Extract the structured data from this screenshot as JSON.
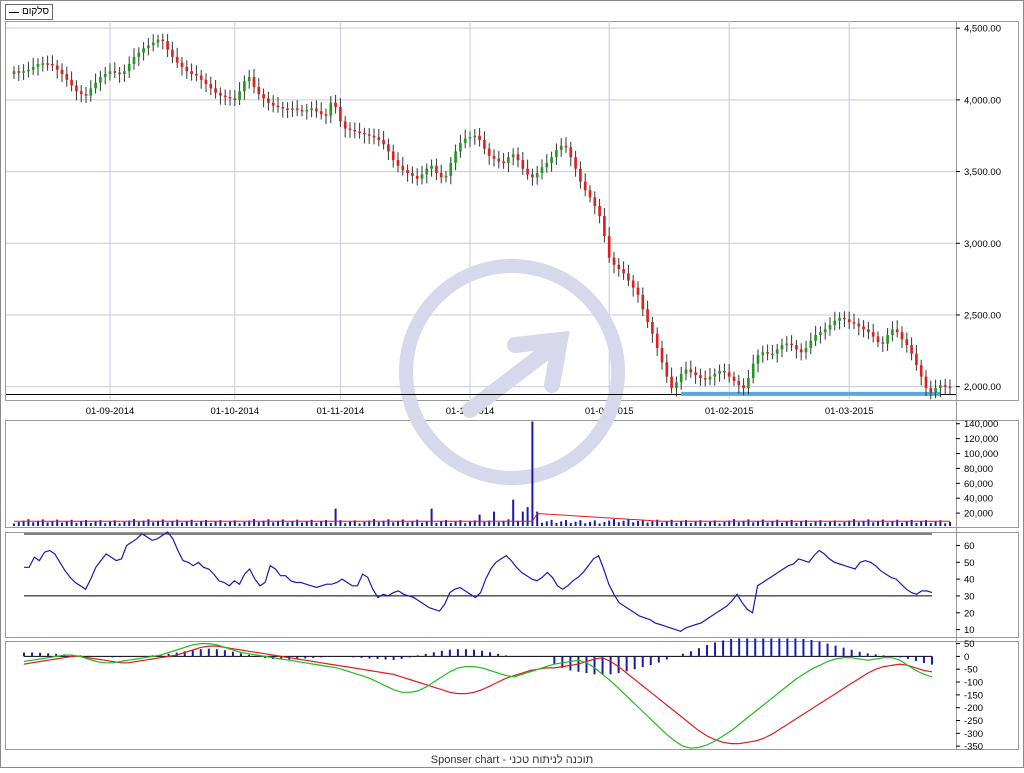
{
  "legend": {
    "label": "סלקום"
  },
  "footer": {
    "text": "Sponser chart - תוכנה לניתוח טכני"
  },
  "colors": {
    "up": "#1e9a1e",
    "down": "#e01e1e",
    "volume": "#1a1ab3",
    "volume_ma": "#e01e1e",
    "oscillator": "#1a1ab3",
    "macd": "#e01e1e",
    "signal": "#22bb22",
    "histogram": "#1a1ab3",
    "support": "#55aadd",
    "grid": "#c9c9df",
    "watermark": "#d8d8ec"
  },
  "chart_data": [
    {
      "type": "candlestick",
      "panel": "price",
      "ylim": [
        1900,
        4550
      ],
      "yticks": [
        "2,000.00",
        "2,500.00",
        "3,000.00",
        "3,500.00",
        "4,000.00",
        "4,500.00"
      ],
      "ytick_values": [
        2000,
        2500,
        3000,
        3500,
        4000,
        4500
      ],
      "xtick_labels": [
        "01-09-2014",
        "01-10-2014",
        "01-11-2014",
        "01-12-2014",
        "01-01-2015",
        "01-02-2015",
        "01-03-2015"
      ],
      "xtick_index": [
        20,
        46,
        68,
        95,
        124,
        149,
        174
      ],
      "support_level": 1950,
      "support_range_index": [
        139,
        193
      ],
      "reference_level": 1945,
      "close_series": [
        4200,
        4190,
        4200,
        4210,
        4230,
        4250,
        4255,
        4250,
        4240,
        4210,
        4180,
        4140,
        4100,
        4060,
        4040,
        4030,
        4080,
        4120,
        4160,
        4180,
        4200,
        4190,
        4180,
        4200,
        4250,
        4300,
        4330,
        4360,
        4380,
        4400,
        4420,
        4410,
        4350,
        4300,
        4260,
        4230,
        4200,
        4180,
        4170,
        4140,
        4110,
        4080,
        4050,
        4030,
        4020,
        4010,
        4000,
        4060,
        4130,
        4160,
        4090,
        4040,
        4010,
        3980,
        3960,
        3950,
        3940,
        3930,
        3940,
        3930,
        3920,
        3930,
        3940,
        3920,
        3900,
        3890,
        3980,
        3950,
        3850,
        3800,
        3790,
        3780,
        3770,
        3760,
        3750,
        3740,
        3720,
        3690,
        3640,
        3580,
        3540,
        3510,
        3490,
        3470,
        3450,
        3480,
        3520,
        3540,
        3490,
        3460,
        3470,
        3560,
        3640,
        3700,
        3730,
        3740,
        3750,
        3720,
        3660,
        3610,
        3590,
        3570,
        3560,
        3600,
        3620,
        3580,
        3520,
        3480,
        3460,
        3490,
        3530,
        3560,
        3600,
        3650,
        3680,
        3670,
        3600,
        3520,
        3430,
        3370,
        3320,
        3260,
        3190,
        3050,
        2900,
        2850,
        2820,
        2790,
        2740,
        2690,
        2640,
        2540,
        2450,
        2370,
        2270,
        2170,
        2070,
        1990,
        2030,
        2090,
        2120,
        2100,
        2080,
        2060,
        2050,
        2070,
        2090,
        2110,
        2100,
        2070,
        2040,
        2010,
        1990,
        2060,
        2160,
        2220,
        2240,
        2230,
        2230,
        2260,
        2290,
        2300,
        2290,
        2260,
        2240,
        2270,
        2320,
        2360,
        2380,
        2400,
        2430,
        2460,
        2480,
        2470,
        2450,
        2440,
        2420,
        2400,
        2380,
        2350,
        2310,
        2300,
        2360,
        2400,
        2380,
        2330,
        2290,
        2230,
        2150,
        2070,
        1990,
        1960,
        1990,
        2010,
        2000,
        1990
      ]
    },
    {
      "type": "bar",
      "panel": "volume",
      "ylim": [
        0,
        145000
      ],
      "yticks": [
        "20,000",
        "40,000",
        "60,000",
        "80,000",
        "100,000",
        "120,000",
        "140,000"
      ],
      "ytick_values": [
        20000,
        40000,
        60000,
        80000,
        100000,
        120000,
        140000
      ],
      "spikes": [
        {
          "index": 67,
          "value": 26000
        },
        {
          "index": 87,
          "value": 26000
        },
        {
          "index": 97,
          "value": 18000
        },
        {
          "index": 100,
          "value": 22000
        },
        {
          "index": 104,
          "value": 38000
        },
        {
          "index": 106,
          "value": 22000
        },
        {
          "index": 107,
          "value": 28000
        },
        {
          "index": 108,
          "value": 143000
        },
        {
          "index": 109,
          "value": 22000
        }
      ],
      "base_level": 6000,
      "moving_average_level": 9000
    },
    {
      "type": "line",
      "panel": "oscillator",
      "ylim": [
        5,
        68
      ],
      "yticks": [
        "10",
        "20",
        "30",
        "40",
        "50",
        "60"
      ],
      "ytick_values": [
        10,
        20,
        30,
        40,
        50,
        60
      ],
      "reference_level": 30,
      "values": [
        47,
        47,
        53,
        51,
        56,
        57,
        55,
        50,
        45,
        41,
        38,
        36,
        34,
        40,
        47,
        51,
        55,
        53,
        51,
        52,
        60,
        62,
        64,
        67,
        65,
        63,
        64,
        66,
        68,
        64,
        57,
        51,
        50,
        48,
        50,
        47,
        46,
        43,
        39,
        38,
        36,
        39,
        37,
        43,
        46,
        40,
        36,
        38,
        48,
        46,
        42,
        42,
        39,
        38,
        38,
        37,
        36,
        35,
        36,
        37,
        37,
        38,
        40,
        38,
        36,
        36,
        43,
        41,
        34,
        29,
        31,
        30,
        32,
        33,
        31,
        30,
        29,
        27,
        25,
        23,
        22,
        21,
        25,
        32,
        34,
        35,
        33,
        31,
        29,
        32,
        40,
        46,
        50,
        52,
        54,
        51,
        47,
        44,
        42,
        40,
        39,
        41,
        44,
        41,
        36,
        34,
        36,
        39,
        41,
        44,
        48,
        52,
        54,
        46,
        37,
        31,
        26,
        24,
        22,
        20,
        18,
        17,
        16,
        14,
        13,
        12,
        11,
        10,
        9,
        11,
        12,
        13,
        14,
        16,
        18,
        20,
        22,
        24,
        27,
        31,
        26,
        22,
        20,
        36,
        38,
        40,
        42,
        44,
        46,
        48,
        49,
        52,
        51,
        50,
        54,
        57,
        55,
        52,
        50,
        49,
        48,
        47,
        46,
        50,
        51,
        50,
        48,
        45,
        43,
        41,
        40,
        37,
        34,
        32,
        31,
        33,
        33,
        32
      ]
    },
    {
      "type": "line",
      "panel": "macd",
      "ylim": [
        -365,
        60
      ],
      "yticks": [
        "50",
        "0",
        "-50",
        "-100",
        "-150",
        "-200",
        "-250",
        "-300",
        "-350"
      ],
      "ytick_values": [
        50,
        0,
        -50,
        -100,
        -150,
        -200,
        -250,
        -300,
        -350
      ],
      "series": [
        {
          "name": "",
          "color": "red",
          "values": [
            -30,
            -25,
            -20,
            -15,
            -10,
            -5,
            0,
            0,
            -5,
            -10,
            -15,
            -20,
            -25,
            -25,
            -20,
            -15,
            -10,
            -5,
            0,
            5,
            15,
            25,
            35,
            40,
            40,
            35,
            30,
            25,
            20,
            15,
            10,
            5,
            0,
            -5,
            -10,
            -15,
            -20,
            -25,
            -30,
            -35,
            -40,
            -45,
            -50,
            -55,
            -60,
            -65,
            -70,
            -80,
            -90,
            -100,
            -110,
            -120,
            -130,
            -140,
            -145,
            -145,
            -140,
            -130,
            -115,
            -100,
            -85,
            -75,
            -65,
            -55,
            -50,
            -45,
            -45,
            -40,
            -35,
            -30,
            -20,
            -10,
            -5,
            -20,
            -40,
            -65,
            -90,
            -115,
            -140,
            -165,
            -190,
            -215,
            -240,
            -265,
            -290,
            -310,
            -325,
            -335,
            -340,
            -340,
            -335,
            -330,
            -320,
            -305,
            -285,
            -265,
            -245,
            -225,
            -205,
            -185,
            -165,
            -145,
            -125,
            -105,
            -85,
            -65,
            -50,
            -40,
            -35,
            -30,
            -35,
            -45,
            -55,
            -60
          ]
        },
        {
          "name": "",
          "color": "green",
          "values": [
            -20,
            -15,
            -10,
            -5,
            0,
            5,
            5,
            0,
            -10,
            -20,
            -25,
            -25,
            -20,
            -15,
            -10,
            -5,
            0,
            5,
            15,
            25,
            35,
            45,
            50,
            50,
            45,
            35,
            25,
            15,
            10,
            5,
            0,
            -5,
            -10,
            -15,
            -20,
            -25,
            -30,
            -35,
            -40,
            -45,
            -55,
            -65,
            -75,
            -85,
            -100,
            -115,
            -130,
            -140,
            -140,
            -135,
            -120,
            -100,
            -80,
            -60,
            -45,
            -40,
            -40,
            -45,
            -55,
            -65,
            -75,
            -80,
            -70,
            -60,
            -50,
            -40,
            -30,
            -25,
            -20,
            -15,
            -25,
            -45,
            -70,
            -95,
            -125,
            -155,
            -185,
            -215,
            -245,
            -275,
            -305,
            -330,
            -350,
            -358,
            -355,
            -345,
            -330,
            -310,
            -290,
            -265,
            -240,
            -215,
            -190,
            -165,
            -140,
            -115,
            -90,
            -70,
            -50,
            -35,
            -20,
            -10,
            -5,
            -5,
            -10,
            -15,
            -10,
            -5,
            -5,
            -15,
            -35,
            -55,
            -70,
            -80
          ]
        },
        {
          "name": "",
          "color": "blue-histogram",
          "values": [
            15,
            15,
            14,
            12,
            10,
            8,
            6,
            4,
            2,
            0,
            -2,
            -4,
            -3,
            -2,
            0,
            2,
            4,
            6,
            10,
            15,
            20,
            25,
            28,
            30,
            28,
            24,
            18,
            12,
            6,
            0,
            -6,
            -10,
            -12,
            -12,
            -10,
            -8,
            -6,
            -4,
            -2,
            0,
            -2,
            -4,
            -6,
            -8,
            -10,
            -12,
            -14,
            -10,
            -4,
            4,
            10,
            16,
            22,
            26,
            28,
            28,
            26,
            22,
            16,
            10,
            4,
            0,
            -2,
            -2,
            0,
            0,
            -30,
            -45,
            -55,
            -60,
            -65,
            -70,
            -72,
            -70,
            -65,
            -58,
            -50,
            -42,
            -34,
            -24,
            -12,
            0,
            10,
            20,
            32,
            44,
            54,
            62,
            68,
            70,
            70,
            70,
            70,
            70,
            70,
            70,
            70,
            68,
            64,
            58,
            50,
            42,
            34,
            26,
            18,
            12,
            8,
            4,
            0,
            -4,
            -10,
            -18,
            -26,
            -32
          ]
        }
      ]
    }
  ]
}
